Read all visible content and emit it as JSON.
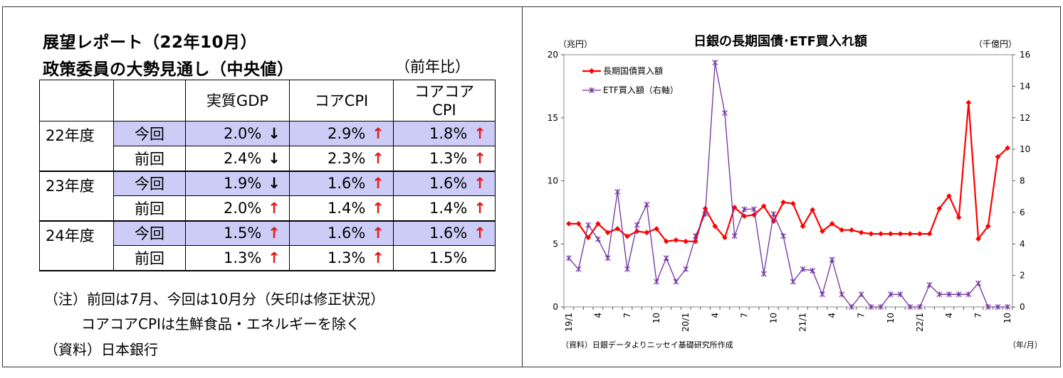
{
  "left_panel": {
    "title_line1": "展望レポート（22年10月）",
    "title_line2": "政策委員の大勢見通し（中央値）",
    "unit": "（前年比）",
    "table": {
      "headers": [
        "",
        "",
        "実質GDP",
        "コアCPI",
        "コアコア\nCPI"
      ],
      "groups": [
        {
          "year": "22年度",
          "rows": [
            {
              "label": "今回",
              "current": true,
              "values": [
                {
                  "text": "2.0%",
                  "arrow": "↓",
                  "dir": "down"
                },
                {
                  "text": "2.9%",
                  "arrow": "↑",
                  "dir": "up"
                },
                {
                  "text": "1.8%",
                  "arrow": "↑",
                  "dir": "up"
                }
              ]
            },
            {
              "label": "前回",
              "current": false,
              "values": [
                {
                  "text": "2.4%",
                  "arrow": "↓",
                  "dir": "down"
                },
                {
                  "text": "2.3%",
                  "arrow": "↑",
                  "dir": "up"
                },
                {
                  "text": "1.3%",
                  "arrow": "↑",
                  "dir": "up"
                }
              ]
            }
          ]
        },
        {
          "year": "23年度",
          "rows": [
            {
              "label": "今回",
              "current": true,
              "values": [
                {
                  "text": "1.9%",
                  "arrow": "↓",
                  "dir": "down"
                },
                {
                  "text": "1.6%",
                  "arrow": "↑",
                  "dir": "up"
                },
                {
                  "text": "1.6%",
                  "arrow": "↑",
                  "dir": "up"
                }
              ]
            },
            {
              "label": "前回",
              "current": false,
              "values": [
                {
                  "text": "2.0%",
                  "arrow": "↑",
                  "dir": "up"
                },
                {
                  "text": "1.4%",
                  "arrow": "↑",
                  "dir": "up"
                },
                {
                  "text": "1.4%",
                  "arrow": "↑",
                  "dir": "up"
                }
              ]
            }
          ]
        },
        {
          "year": "24年度",
          "rows": [
            {
              "label": "今回",
              "current": true,
              "values": [
                {
                  "text": "1.5%",
                  "arrow": "↑",
                  "dir": "up"
                },
                {
                  "text": "1.6%",
                  "arrow": "↑",
                  "dir": "up"
                },
                {
                  "text": "1.6%",
                  "arrow": "↑",
                  "dir": "up"
                }
              ]
            },
            {
              "label": "前回",
              "current": false,
              "values": [
                {
                  "text": "1.3%",
                  "arrow": "↑",
                  "dir": "up"
                },
                {
                  "text": "1.3%",
                  "arrow": "↑",
                  "dir": "up"
                },
                {
                  "text": "1.5%",
                  "arrow": "",
                  "dir": "none"
                }
              ]
            }
          ]
        }
      ]
    },
    "note1": "（注）前回は7月、今回は10月分（矢印は修正状況）",
    "note2": "コアコアCPIは生鮮食品・エネルギーを除く",
    "source": "（資料）日本銀行"
  },
  "chart_data": {
    "type": "line",
    "title": "日銀の長期国債･ETF買入れ額",
    "ylabel_left": "（兆円）",
    "ylabel_right": "（千億円）",
    "xlabel": "（年/月）",
    "source_note": "（資料）日銀データよりニッセイ基礎研究所作成",
    "ylim_left": [
      0,
      20
    ],
    "yticks_left": [
      "0",
      "5",
      "10",
      "15",
      "20"
    ],
    "ylim_right": [
      0,
      16
    ],
    "yticks_right": [
      "0",
      "2",
      "4",
      "6",
      "8",
      "10",
      "12",
      "14",
      "16"
    ],
    "x_tick_labels": [
      "19/1",
      "4",
      "7",
      "10",
      "20/1",
      "4",
      "7",
      "10",
      "21/1",
      "4",
      "7",
      "10",
      "22/1",
      "4",
      "7",
      "10"
    ],
    "x_tick_indices": [
      0,
      3,
      6,
      9,
      12,
      15,
      18,
      21,
      24,
      27,
      30,
      33,
      36,
      39,
      42,
      45
    ],
    "x_months": [
      "19/1",
      "19/2",
      "19/3",
      "19/4",
      "19/5",
      "19/6",
      "19/7",
      "19/8",
      "19/9",
      "19/10",
      "19/11",
      "19/12",
      "20/1",
      "20/2",
      "20/3",
      "20/4",
      "20/5",
      "20/6",
      "20/7",
      "20/8",
      "20/9",
      "20/10",
      "20/11",
      "20/12",
      "21/1",
      "21/2",
      "21/3",
      "21/4",
      "21/5",
      "21/6",
      "21/7",
      "21/8",
      "21/9",
      "21/10",
      "21/11",
      "21/12",
      "22/1",
      "22/2",
      "22/3",
      "22/4",
      "22/5",
      "22/6",
      "22/7",
      "22/8",
      "22/9",
      "22/10"
    ],
    "legend_position": "top-left",
    "series": [
      {
        "name": "長期国債買入額",
        "axis": "left",
        "color": "#ff0000",
        "marker": "diamond",
        "values": [
          6.6,
          6.6,
          5.5,
          6.6,
          5.9,
          6.2,
          5.6,
          6.0,
          5.9,
          6.2,
          5.2,
          5.3,
          5.2,
          5.2,
          7.8,
          6.4,
          5.5,
          7.9,
          7.2,
          7.3,
          8.0,
          6.8,
          8.3,
          8.2,
          6.4,
          7.7,
          6.0,
          6.6,
          6.1,
          6.1,
          5.9,
          5.8,
          5.8,
          5.8,
          5.8,
          5.8,
          5.8,
          5.8,
          7.8,
          8.8,
          7.1,
          16.2,
          5.4,
          6.4,
          11.9,
          12.6
        ]
      },
      {
        "name": "ETF買入額（右軸）",
        "axis": "right",
        "color": "#7030a0",
        "marker": "asterisk",
        "values": [
          3.1,
          2.4,
          5.2,
          4.3,
          3.1,
          7.3,
          2.4,
          5.2,
          6.5,
          1.6,
          3.1,
          1.6,
          2.4,
          4.5,
          5.9,
          15.5,
          12.3,
          4.5,
          6.2,
          6.2,
          2.1,
          5.9,
          4.5,
          1.6,
          2.4,
          2.3,
          0.8,
          3.0,
          0.8,
          0.0,
          0.8,
          0.0,
          0.0,
          0.8,
          0.8,
          0.0,
          0.0,
          1.4,
          0.8,
          0.8,
          0.8,
          0.8,
          1.5,
          0.0,
          0.0,
          0.0
        ]
      }
    ]
  }
}
